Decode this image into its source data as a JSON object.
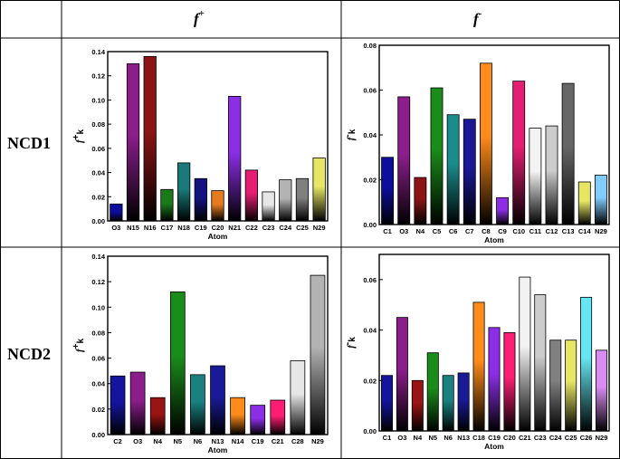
{
  "table": {
    "col_headers": [
      {
        "base": "f",
        "sup": "+"
      },
      {
        "base": "f",
        "sup": "-"
      }
    ],
    "row_labels": [
      "NCD1",
      "NCD2"
    ]
  },
  "chart_data": [
    {
      "type": "bar",
      "row": "NCD1",
      "col": "f+",
      "xlabel": "Atom",
      "ylabel": {
        "base": "f",
        "sup": "+",
        "sub": "k"
      },
      "ylim": [
        0,
        0.14
      ],
      "yticks": [
        0.0,
        0.02,
        0.04,
        0.06,
        0.08,
        0.1,
        0.12,
        0.14
      ],
      "ydec": 2,
      "categories": [
        "O3",
        "N15",
        "N16",
        "C17",
        "N18",
        "C19",
        "C20",
        "N21",
        "C22",
        "C23",
        "C24",
        "C25",
        "N29"
      ],
      "values": [
        0.014,
        0.13,
        0.136,
        0.026,
        0.048,
        0.035,
        0.025,
        0.103,
        0.042,
        0.024,
        0.034,
        0.035,
        0.052
      ],
      "colors": [
        "#0d0d9e",
        "#8c1e8c",
        "#8c1414",
        "#1a7a1a",
        "#1a7a7a",
        "#141480",
        "#e67a1e",
        "#8c2ee6",
        "#e61e73",
        "#e6e6e6",
        "#b3b3b3",
        "#808080",
        "#e6e664"
      ]
    },
    {
      "type": "bar",
      "row": "NCD1",
      "col": "f-",
      "xlabel": "Atom",
      "ylabel": {
        "base": "f",
        "sup": "-",
        "sub": "k"
      },
      "ylim": [
        0,
        0.08
      ],
      "yticks": [
        0.0,
        0.02,
        0.04,
        0.06,
        0.08
      ],
      "ydec": 2,
      "categories": [
        "C1",
        "O3",
        "N4",
        "C5",
        "C6",
        "C7",
        "C8",
        "C9",
        "C10",
        "C11",
        "C12",
        "C13",
        "C14",
        "N29"
      ],
      "values": [
        0.03,
        0.057,
        0.021,
        0.061,
        0.049,
        0.047,
        0.072,
        0.012,
        0.064,
        0.043,
        0.044,
        0.063,
        0.019,
        0.022
      ],
      "colors": [
        "#0d0d9e",
        "#8c1e8c",
        "#8c1414",
        "#1a8c1a",
        "#1a8c8c",
        "#1a1a99",
        "#ff8c1a",
        "#8c2ee6",
        "#e61e73",
        "#f2f2f2",
        "#cccccc",
        "#666666",
        "#e6e664",
        "#80ccff"
      ]
    },
    {
      "type": "bar",
      "row": "NCD2",
      "col": "f+",
      "xlabel": "Atom",
      "ylabel": {
        "base": "f",
        "sup": "+",
        "sub": "k"
      },
      "ylim": [
        0,
        0.14
      ],
      "yticks": [
        0.0,
        0.02,
        0.04,
        0.06,
        0.08,
        0.1,
        0.12,
        0.14
      ],
      "ydec": 2,
      "categories": [
        "C2",
        "O3",
        "N4",
        "N5",
        "N6",
        "N13",
        "N14",
        "C19",
        "C21",
        "C28",
        "N29"
      ],
      "values": [
        0.046,
        0.049,
        0.029,
        0.112,
        0.047,
        0.054,
        0.029,
        0.023,
        0.027,
        0.058,
        0.125
      ],
      "colors": [
        "#14149e",
        "#8c1e8c",
        "#991414",
        "#1a8c1a",
        "#1a8080",
        "#1a1a99",
        "#ff8c1a",
        "#8c2ee6",
        "#ff1e73",
        "#e6e6e6",
        "#b3b3b3"
      ]
    },
    {
      "type": "bar",
      "row": "NCD2",
      "col": "f-",
      "xlabel": "Atom",
      "ylabel": {
        "base": "f",
        "sup": "-",
        "sub": "k"
      },
      "ylim": [
        0,
        0.07
      ],
      "yticks": [
        0.0,
        0.02,
        0.04,
        0.06
      ],
      "ydec": 2,
      "categories": [
        "C1",
        "O3",
        "N4",
        "N5",
        "N6",
        "N13",
        "C18",
        "C19",
        "C20",
        "C21",
        "C23",
        "C24",
        "C25",
        "C26",
        "N29"
      ],
      "values": [
        0.022,
        0.045,
        0.02,
        0.031,
        0.022,
        0.023,
        0.051,
        0.041,
        0.039,
        0.061,
        0.054,
        0.036,
        0.036,
        0.053,
        0.032
      ],
      "colors": [
        "#14149e",
        "#8c1e8c",
        "#991414",
        "#1a8c1a",
        "#1a8080",
        "#1a1a99",
        "#ff8c1a",
        "#8c2ee6",
        "#ff1e73",
        "#f2f2f2",
        "#cccccc",
        "#808080",
        "#e6e664",
        "#66e6f2",
        "#d98cf2"
      ]
    }
  ]
}
